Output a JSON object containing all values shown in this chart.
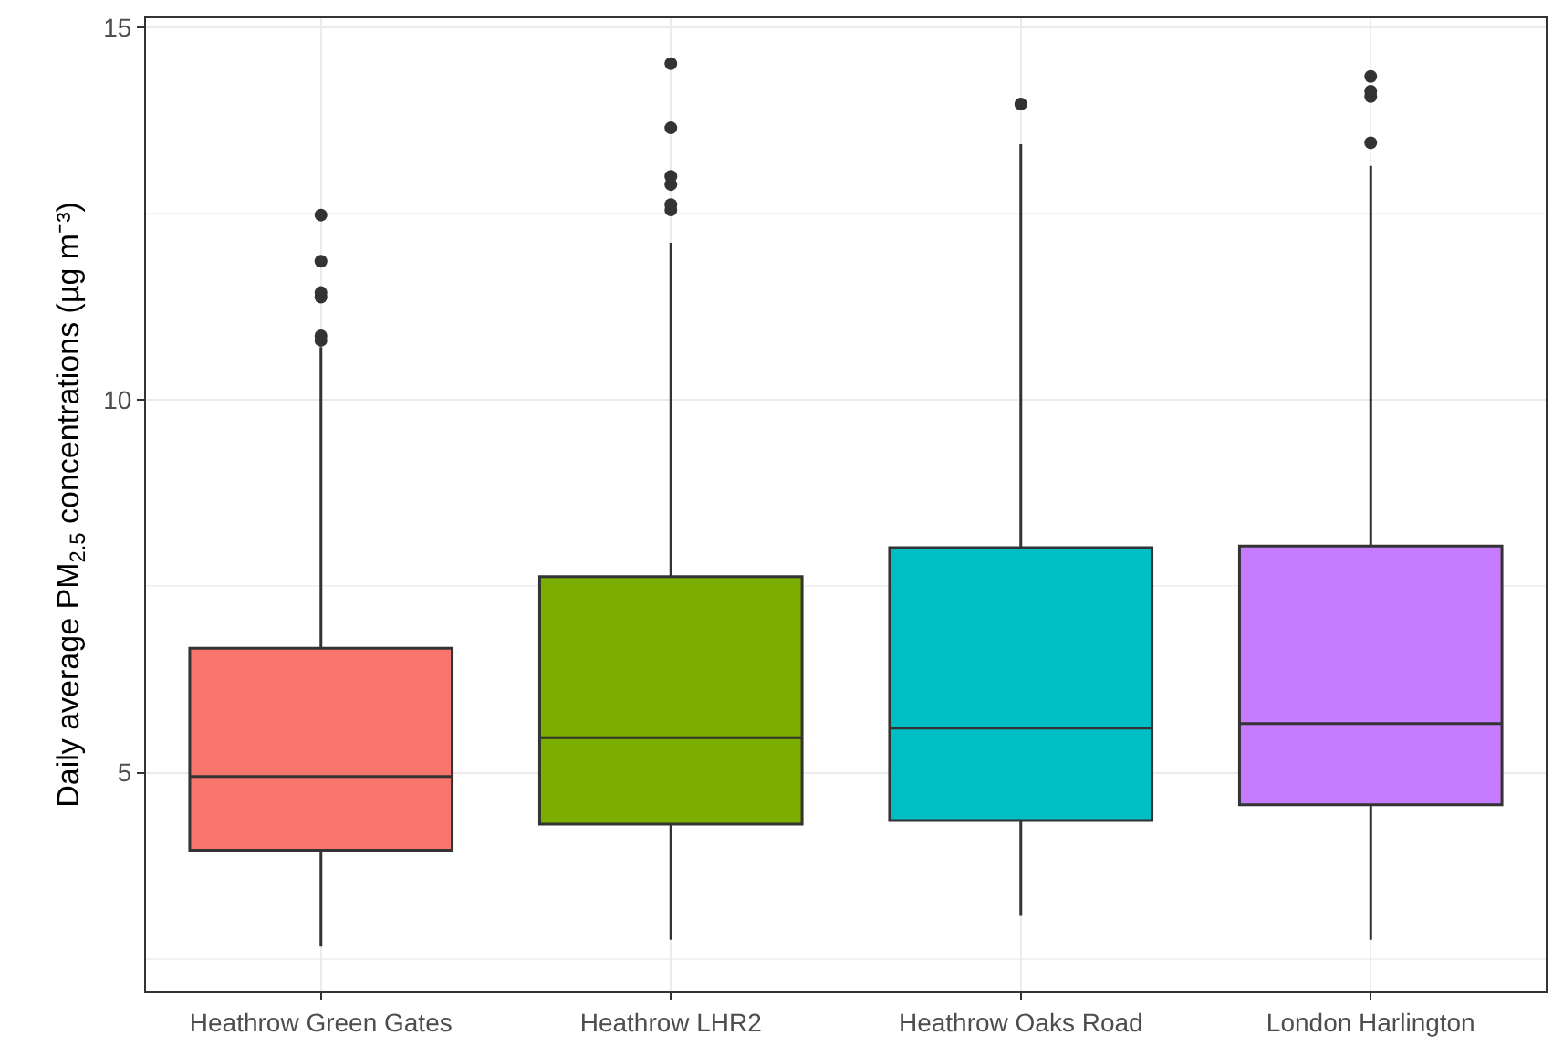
{
  "chart_data": {
    "type": "box",
    "ylabel": "Daily average PM$_{2.5}$ concentrations (µg m⁻³)",
    "categories": [
      "Heathrow Green Gates",
      "Heathrow LHR2",
      "Heathrow Oaks Road",
      "London Harlington"
    ],
    "colors": [
      "#f8766d",
      "#7cae00",
      "#00bfc4",
      "#c77cff"
    ],
    "boxes": [
      {
        "low": 2.68,
        "q1": 3.96,
        "median": 4.95,
        "q3": 6.67,
        "high": 10.71,
        "outliers": [
          10.8,
          10.86,
          11.38,
          11.44,
          11.86,
          12.48
        ]
      },
      {
        "low": 2.76,
        "q1": 4.31,
        "median": 5.47,
        "q3": 7.63,
        "high": 12.11,
        "outliers": [
          12.55,
          12.62,
          12.89,
          13.0,
          13.65,
          14.51
        ]
      },
      {
        "low": 3.08,
        "q1": 4.36,
        "median": 5.6,
        "q3": 8.02,
        "high": 13.43,
        "outliers": [
          13.97
        ]
      },
      {
        "low": 2.76,
        "q1": 4.57,
        "median": 5.66,
        "q3": 8.04,
        "high": 13.14,
        "outliers": [
          13.45,
          14.07,
          14.14,
          14.34
        ]
      }
    ],
    "ylim": [
      2.07,
      15.12
    ],
    "yticks": [
      {
        "value": 2.5,
        "label": null
      },
      5,
      {
        "value": 7.5,
        "label": null
      },
      10,
      {
        "value": 12.5,
        "label": null
      },
      15
    ],
    "grid": true,
    "legend": false
  }
}
